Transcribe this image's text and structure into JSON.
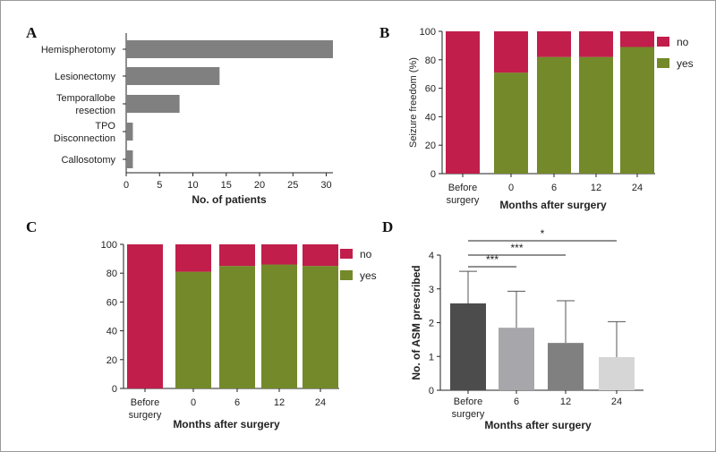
{
  "colors": {
    "no": "#c11e4c",
    "yes": "#74892a",
    "bar_gray": "#808080"
  },
  "chart_data": [
    {
      "panel": "A",
      "type": "bar",
      "orientation": "horizontal",
      "categories": [
        "Hemispherotomy",
        "Lesionectomy",
        "Temporallobe\nresection",
        "TPO\nDisconnection",
        "Callosotomy"
      ],
      "values": [
        31,
        14,
        8,
        1,
        1
      ],
      "xlabel": "No. of patients",
      "xlim": [
        0,
        31
      ],
      "xticks": [
        0,
        5,
        10,
        15,
        20,
        25,
        30
      ],
      "grid": false
    },
    {
      "panel": "B",
      "type": "bar",
      "stacked": true,
      "categories": [
        "Before\nsurgery",
        "0",
        "6",
        "12",
        "24"
      ],
      "series": [
        {
          "name": "yes",
          "values": [
            0,
            71,
            82,
            82,
            89
          ]
        },
        {
          "name": "no",
          "values": [
            100,
            29,
            18,
            18,
            11
          ]
        }
      ],
      "ylabel": "Seizure freedom (%)",
      "xlabel": "Months after surgery",
      "ylim": [
        0,
        100
      ],
      "yticks": [
        0,
        20,
        40,
        60,
        80,
        100
      ],
      "legend": "top-right",
      "grid": false
    },
    {
      "panel": "C",
      "type": "bar",
      "stacked": true,
      "categories": [
        "Before\nsurgery",
        "0",
        "6",
        "12",
        "24"
      ],
      "series": [
        {
          "name": "yes",
          "values": [
            0,
            81,
            85,
            86,
            85
          ]
        },
        {
          "name": "no",
          "values": [
            100,
            19,
            15,
            14,
            15
          ]
        }
      ],
      "ylabel": "",
      "xlabel": "Months after surgery",
      "ylim": [
        0,
        100
      ],
      "yticks": [
        0,
        20,
        40,
        60,
        80,
        100
      ],
      "legend": "top-right",
      "grid": false
    },
    {
      "panel": "D",
      "type": "bar",
      "categories": [
        "Before\nsurgery",
        "6",
        "12",
        "24"
      ],
      "values": [
        2.57,
        1.85,
        1.4,
        0.98
      ],
      "errors": [
        0.95,
        1.08,
        1.25,
        1.05
      ],
      "bar_colors": [
        "#4c4c4c",
        "#a7a7ab",
        "#808080",
        "#d6d6d6"
      ],
      "ylabel": "No. of ASM prescribed",
      "xlabel": "Months after surgery",
      "ylim": [
        0,
        4
      ],
      "yticks": [
        0,
        1,
        2,
        3,
        4
      ],
      "significance": [
        {
          "from": 0,
          "to": 1,
          "label": "***"
        },
        {
          "from": 0,
          "to": 2,
          "label": "***"
        },
        {
          "from": 0,
          "to": 3,
          "label": "*"
        }
      ],
      "grid": false
    }
  ]
}
